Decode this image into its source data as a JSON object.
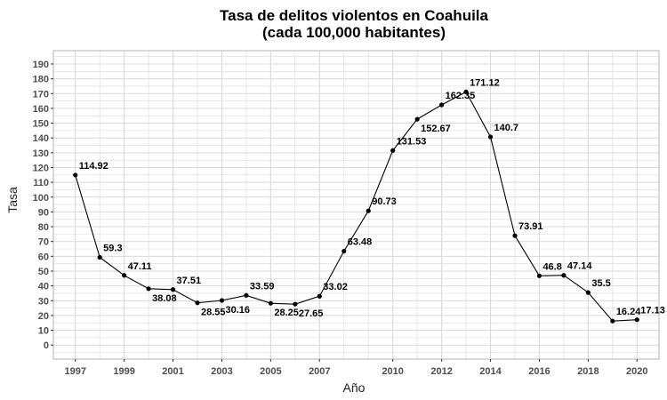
{
  "chart_data": {
    "type": "line",
    "title": "Tasa de delitos violentos en Coahuila",
    "subtitle": "(cada 100,000 habitantes)",
    "xlabel": "Año",
    "ylabel": "Tasa",
    "x": [
      1997,
      1998,
      1999,
      2000,
      2001,
      2002,
      2003,
      2004,
      2005,
      2006,
      2007,
      2008,
      2009,
      2010,
      2011,
      2012,
      2013,
      2014,
      2015,
      2016,
      2017,
      2018,
      2019,
      2020
    ],
    "values": [
      114.92,
      59.3,
      47.11,
      38.08,
      37.51,
      28.55,
      30.16,
      33.59,
      28.25,
      27.65,
      33.02,
      63.48,
      90.73,
      131.53,
      152.67,
      162.35,
      171.12,
      140.7,
      73.91,
      46.8,
      47.14,
      35.5,
      16.24,
      17.13
    ],
    "labels": [
      "114.92",
      "59.3",
      "47.11",
      "38.08",
      "37.51",
      "28.55",
      "30.16",
      "33.59",
      "28.25",
      "27.65",
      "33.02",
      "63.48",
      "90.73",
      "131.53",
      "152.67",
      "162.35",
      "171.12",
      "140.7",
      "73.91",
      "46.8",
      "47.14",
      "35.5",
      "16.24",
      "17.13"
    ],
    "label_below": [
      false,
      false,
      false,
      true,
      false,
      true,
      true,
      false,
      true,
      true,
      false,
      false,
      false,
      false,
      true,
      false,
      false,
      false,
      false,
      false,
      false,
      false,
      false,
      false
    ],
    "x_ticks": [
      1997,
      1999,
      2001,
      2003,
      2005,
      2007,
      2010,
      2012,
      2014,
      2016,
      2018,
      2020
    ],
    "x_tick_labels": [
      "1997",
      "1999",
      "2001",
      "2003",
      "2005",
      "2007",
      "2010",
      "2012",
      "2014",
      "2016",
      "2018",
      "2020"
    ],
    "y_ticks": [
      0,
      10,
      20,
      30,
      40,
      50,
      60,
      70,
      80,
      90,
      100,
      110,
      120,
      130,
      140,
      150,
      160,
      170,
      180,
      190
    ],
    "y_tick_labels": [
      "0",
      "10",
      "20",
      "30",
      "40",
      "50",
      "60",
      "70",
      "80",
      "90",
      "100",
      "110",
      "120",
      "130",
      "140",
      "150",
      "160",
      "170",
      "180",
      "190"
    ],
    "xlim": [
      1996.1,
      2020.9
    ],
    "ylim": [
      -9.5,
      199
    ],
    "grid": true,
    "colors": {
      "line": "#000000",
      "grid": "#d9d9d9",
      "panel_border": "#b3b3b3"
    }
  }
}
